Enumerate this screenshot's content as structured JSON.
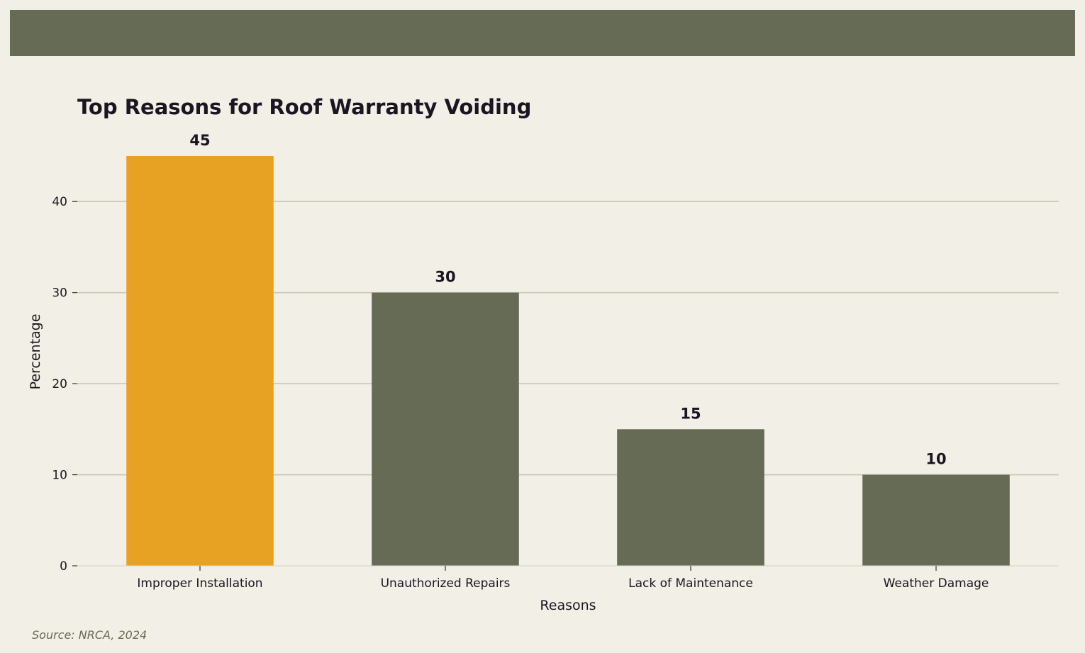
{
  "chart_data": {
    "type": "bar",
    "title": "Top Reasons for Roof Warranty Voiding",
    "xlabel": "Reasons",
    "ylabel": "Percentage",
    "categories": [
      "Improper Installation",
      "Unauthorized Repairs",
      "Lack of Maintenance",
      "Weather Damage"
    ],
    "values": [
      45,
      30,
      15,
      10
    ],
    "ylim": [
      0,
      45
    ],
    "yticks": [
      0,
      10,
      20,
      30,
      40
    ],
    "grid": "horizontal",
    "data_labels": true,
    "colors": {
      "highlight_bar": "#E8A223",
      "bar": "#666B55",
      "gridline": "#C9C7B8",
      "text": "#1A1520",
      "banner": "#666B55",
      "background": "#F2EFE6"
    }
  },
  "source": "Source: NRCA, 2024"
}
